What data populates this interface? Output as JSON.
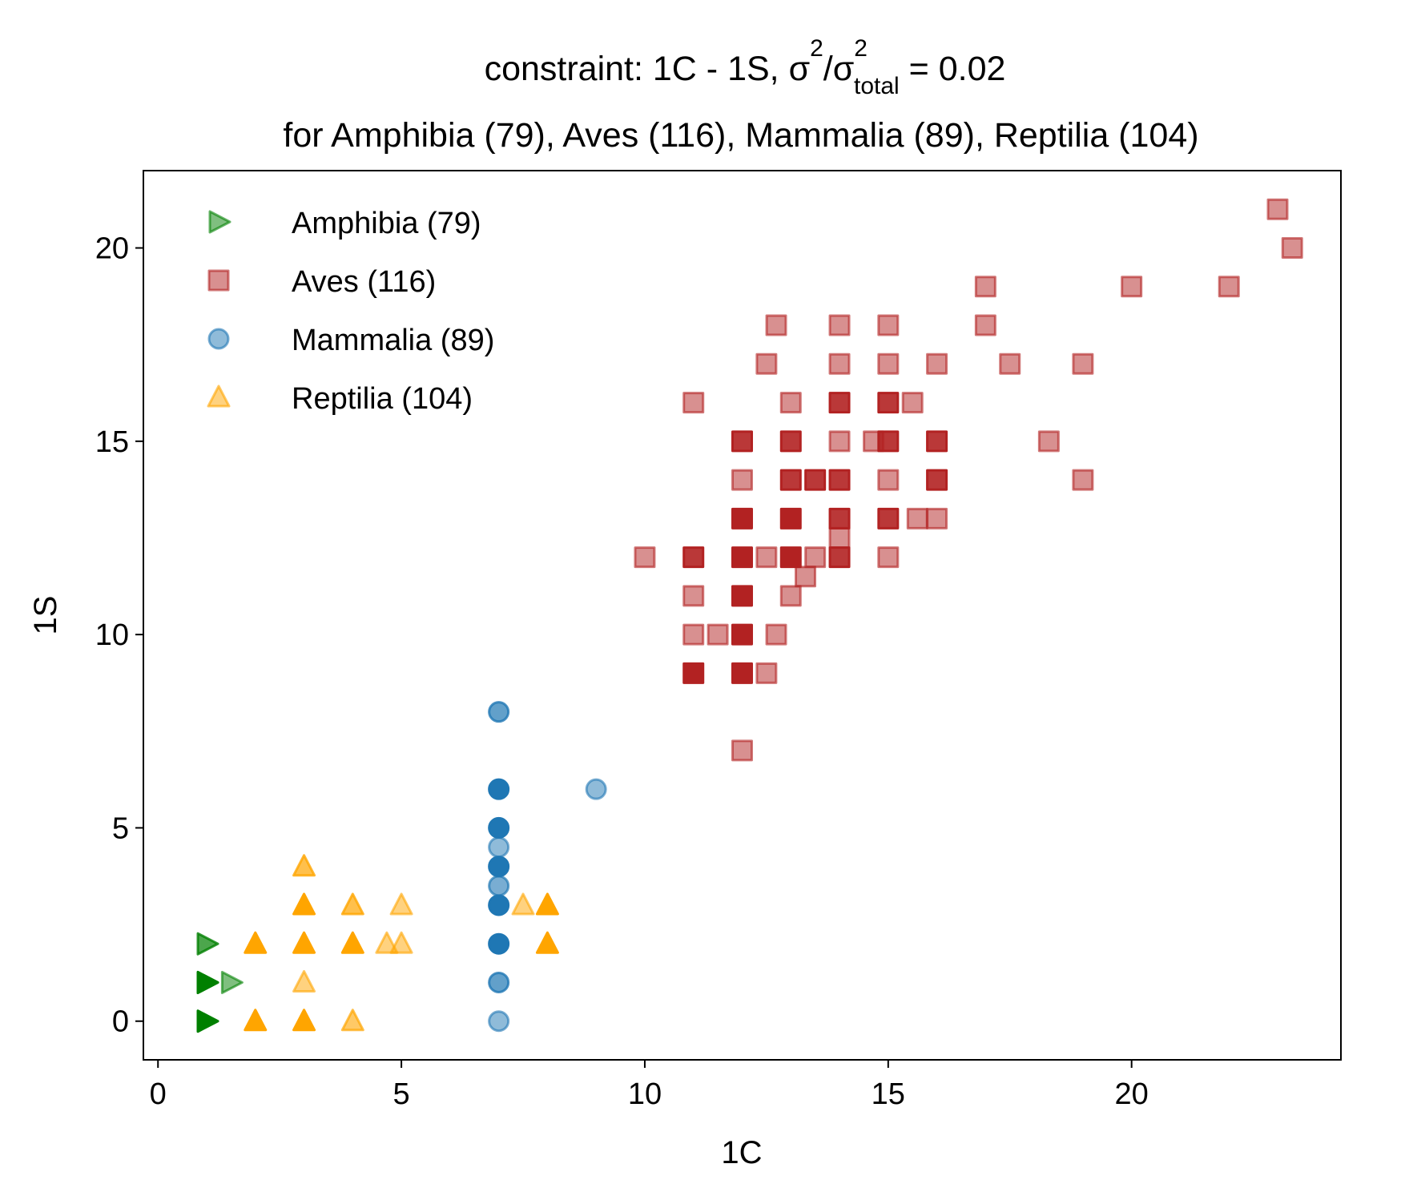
{
  "chart_data": {
    "type": "scatter",
    "title": {
      "main": "constraint: 1C - 1S, σ",
      "sup1": "2",
      "slash": "/σ",
      "sup2": "2",
      "sub": "total",
      "value": " =  0.02",
      "line2": "for Amphibia (79), Aves (116), Mammalia (89), Reptilia (104)"
    },
    "xlabel": "1C",
    "ylabel": "1S",
    "xlim": [
      -0.3,
      24.3
    ],
    "ylim": [
      -1,
      22
    ],
    "xticks": [
      0,
      5,
      10,
      15,
      20
    ],
    "yticks": [
      0,
      5,
      10,
      15,
      20
    ],
    "grid": false,
    "legend_position": "top-left",
    "series": [
      {
        "name": "Amphibia (79)",
        "marker": "triangle-right",
        "color": "#008000",
        "points": [
          {
            "x": 1,
            "y": 2,
            "a": 0.7
          },
          {
            "x": 1,
            "y": 1,
            "a": 1.0
          },
          {
            "x": 1,
            "y": 1,
            "a": 1.0
          },
          {
            "x": 1.5,
            "y": 1,
            "a": 0.5
          },
          {
            "x": 1,
            "y": 0,
            "a": 1.0
          }
        ]
      },
      {
        "name": "Aves (116)",
        "marker": "square",
        "color": "#b22222",
        "points": [
          {
            "x": 23,
            "y": 21,
            "a": 0.5
          },
          {
            "x": 23.3,
            "y": 20,
            "a": 0.5
          },
          {
            "x": 17,
            "y": 19,
            "a": 0.5
          },
          {
            "x": 20,
            "y": 19,
            "a": 0.5
          },
          {
            "x": 22,
            "y": 19,
            "a": 0.5
          },
          {
            "x": 12.7,
            "y": 18,
            "a": 0.5
          },
          {
            "x": 14,
            "y": 18,
            "a": 0.5
          },
          {
            "x": 15,
            "y": 18,
            "a": 0.5
          },
          {
            "x": 17,
            "y": 18,
            "a": 0.5
          },
          {
            "x": 12.5,
            "y": 17,
            "a": 0.5
          },
          {
            "x": 14,
            "y": 17,
            "a": 0.5
          },
          {
            "x": 15,
            "y": 17,
            "a": 0.5
          },
          {
            "x": 16,
            "y": 17,
            "a": 0.5
          },
          {
            "x": 17.5,
            "y": 17,
            "a": 0.5
          },
          {
            "x": 19,
            "y": 17,
            "a": 0.5
          },
          {
            "x": 11,
            "y": 16,
            "a": 0.5
          },
          {
            "x": 13,
            "y": 16,
            "a": 0.5
          },
          {
            "x": 14,
            "y": 16,
            "a": 0.9
          },
          {
            "x": 15,
            "y": 16,
            "a": 0.9
          },
          {
            "x": 15.5,
            "y": 16,
            "a": 0.5
          },
          {
            "x": 12,
            "y": 15,
            "a": 0.9
          },
          {
            "x": 13,
            "y": 15,
            "a": 0.9
          },
          {
            "x": 14,
            "y": 15,
            "a": 0.5
          },
          {
            "x": 14.7,
            "y": 15,
            "a": 0.5
          },
          {
            "x": 15,
            "y": 15,
            "a": 0.9
          },
          {
            "x": 16,
            "y": 15,
            "a": 0.9
          },
          {
            "x": 18.3,
            "y": 15,
            "a": 0.5
          },
          {
            "x": 12,
            "y": 14,
            "a": 0.5
          },
          {
            "x": 13,
            "y": 14,
            "a": 0.9
          },
          {
            "x": 13.5,
            "y": 14,
            "a": 0.9
          },
          {
            "x": 14,
            "y": 14,
            "a": 0.9
          },
          {
            "x": 15,
            "y": 14,
            "a": 0.5
          },
          {
            "x": 16,
            "y": 14,
            "a": 0.9
          },
          {
            "x": 19,
            "y": 14,
            "a": 0.5
          },
          {
            "x": 12,
            "y": 13,
            "a": 1.0
          },
          {
            "x": 13,
            "y": 13,
            "a": 1.0
          },
          {
            "x": 14,
            "y": 13,
            "a": 0.9
          },
          {
            "x": 15,
            "y": 13,
            "a": 0.9
          },
          {
            "x": 15.6,
            "y": 13,
            "a": 0.5
          },
          {
            "x": 16,
            "y": 13,
            "a": 0.5
          },
          {
            "x": 14,
            "y": 12.5,
            "a": 0.5
          },
          {
            "x": 10,
            "y": 12,
            "a": 0.5
          },
          {
            "x": 11,
            "y": 12,
            "a": 0.9
          },
          {
            "x": 12,
            "y": 12,
            "a": 1.0
          },
          {
            "x": 12.5,
            "y": 12,
            "a": 0.5
          },
          {
            "x": 13,
            "y": 12,
            "a": 1.0
          },
          {
            "x": 13.5,
            "y": 12,
            "a": 0.5
          },
          {
            "x": 14,
            "y": 12,
            "a": 0.9
          },
          {
            "x": 15,
            "y": 12,
            "a": 0.5
          },
          {
            "x": 13.3,
            "y": 11.5,
            "a": 0.5
          },
          {
            "x": 11,
            "y": 11,
            "a": 0.5
          },
          {
            "x": 12,
            "y": 11,
            "a": 1.0
          },
          {
            "x": 13,
            "y": 11,
            "a": 0.5
          },
          {
            "x": 11,
            "y": 10,
            "a": 0.5
          },
          {
            "x": 11.5,
            "y": 10,
            "a": 0.5
          },
          {
            "x": 12,
            "y": 10,
            "a": 1.0
          },
          {
            "x": 12.7,
            "y": 10,
            "a": 0.5
          },
          {
            "x": 11,
            "y": 9,
            "a": 1.0
          },
          {
            "x": 12,
            "y": 9,
            "a": 1.0
          },
          {
            "x": 12.5,
            "y": 9,
            "a": 0.5
          },
          {
            "x": 12,
            "y": 7,
            "a": 0.5
          }
        ]
      },
      {
        "name": "Mammalia (89)",
        "marker": "circle",
        "color": "#1f77b4",
        "points": [
          {
            "x": 7,
            "y": 8,
            "a": 0.7
          },
          {
            "x": 7,
            "y": 6,
            "a": 1.0
          },
          {
            "x": 9,
            "y": 6,
            "a": 0.5
          },
          {
            "x": 7,
            "y": 5,
            "a": 1.0
          },
          {
            "x": 7,
            "y": 4.5,
            "a": 0.5
          },
          {
            "x": 7,
            "y": 4,
            "a": 1.0
          },
          {
            "x": 7,
            "y": 3.5,
            "a": 0.6
          },
          {
            "x": 7,
            "y": 3,
            "a": 1.0
          },
          {
            "x": 7,
            "y": 2,
            "a": 1.0
          },
          {
            "x": 7,
            "y": 1,
            "a": 0.7
          },
          {
            "x": 7,
            "y": 0,
            "a": 0.5
          }
        ]
      },
      {
        "name": "Reptilia (104)",
        "marker": "triangle-up",
        "color": "#ffa500",
        "points": [
          {
            "x": 3,
            "y": 4,
            "a": 0.7
          },
          {
            "x": 3,
            "y": 3,
            "a": 1.0
          },
          {
            "x": 4,
            "y": 3,
            "a": 0.7
          },
          {
            "x": 5,
            "y": 3,
            "a": 0.5
          },
          {
            "x": 7.5,
            "y": 3,
            "a": 0.5
          },
          {
            "x": 8,
            "y": 3,
            "a": 1.0
          },
          {
            "x": 2,
            "y": 2,
            "a": 1.0
          },
          {
            "x": 3,
            "y": 2,
            "a": 1.0
          },
          {
            "x": 4,
            "y": 2,
            "a": 1.0
          },
          {
            "x": 4.7,
            "y": 2,
            "a": 0.5
          },
          {
            "x": 5,
            "y": 2,
            "a": 0.5
          },
          {
            "x": 8,
            "y": 2,
            "a": 1.0
          },
          {
            "x": 3,
            "y": 1,
            "a": 0.5
          },
          {
            "x": 2,
            "y": 0,
            "a": 1.0
          },
          {
            "x": 3,
            "y": 0,
            "a": 1.0
          },
          {
            "x": 4,
            "y": 0,
            "a": 0.6
          }
        ]
      }
    ]
  }
}
